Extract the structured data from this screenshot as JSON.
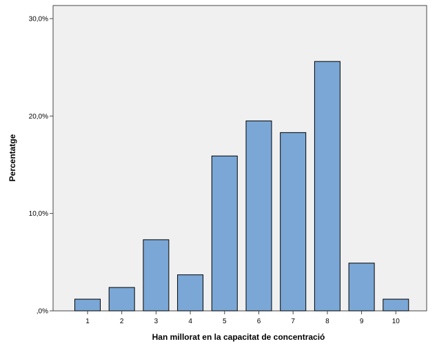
{
  "chart_data": {
    "type": "bar",
    "title": "",
    "xlabel": "Han millorat en la capacitat de concentració",
    "ylabel": "Percentatge",
    "categories": [
      "1",
      "2",
      "3",
      "4",
      "5",
      "6",
      "7",
      "8",
      "9",
      "10"
    ],
    "values": [
      1.2,
      2.4,
      7.3,
      3.7,
      15.9,
      19.5,
      18.3,
      25.6,
      4.9,
      1.2
    ],
    "ylim": [
      0,
      30
    ],
    "yticks": [
      0,
      10,
      20,
      30
    ],
    "ytick_labels": [
      ",0%",
      "10,0%",
      "20,0%",
      "30,0%"
    ],
    "grid": false,
    "bar_color": "#7aa7d6",
    "bar_edge_color": "#000000",
    "plot_background": "#f0f0f0"
  }
}
